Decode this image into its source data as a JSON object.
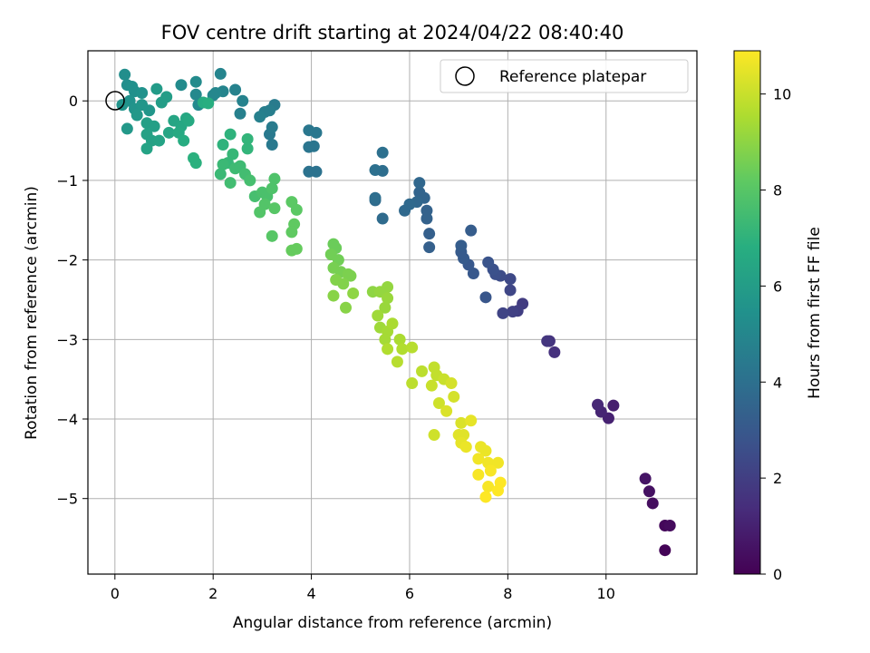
{
  "chart_data": {
    "type": "scatter",
    "title": "FOV centre drift starting at 2024/04/22 08:40:40",
    "xlabel": "Angular distance from reference (arcmin)",
    "ylabel": "Rotation from reference (arcmin)",
    "xlim": [
      -0.55,
      11.85
    ],
    "ylim": [
      -5.95,
      0.63
    ],
    "xticks": [
      "0",
      "2",
      "4",
      "6",
      "8",
      "10"
    ],
    "yticks": [
      "0",
      "−1",
      "−2",
      "−3",
      "−4",
      "−5"
    ],
    "grid": true,
    "legend_position": "top-right",
    "colorbar": {
      "label": "Hours from first FF file",
      "range": [
        0,
        10.9
      ],
      "ticks": [
        "0",
        "2",
        "4",
        "6",
        "8",
        "10"
      ],
      "colormap": "viridis"
    },
    "reference": {
      "name": "Reference platepar",
      "x": 0,
      "y": 0
    },
    "points": [
      [
        11.2,
        -5.65,
        0.1
      ],
      [
        11.2,
        -5.34,
        0.2
      ],
      [
        11.3,
        -5.34,
        0.3
      ],
      [
        10.95,
        -5.06,
        0.4
      ],
      [
        10.88,
        -4.91,
        0.5
      ],
      [
        10.8,
        -4.75,
        0.6
      ],
      [
        10.15,
        -3.83,
        0.9
      ],
      [
        10.05,
        -3.99,
        1.0
      ],
      [
        9.9,
        -3.91,
        1.1
      ],
      [
        9.83,
        -3.82,
        1.2
      ],
      [
        8.95,
        -3.16,
        1.5
      ],
      [
        8.85,
        -3.02,
        1.6
      ],
      [
        8.8,
        -3.02,
        1.7
      ],
      [
        8.3,
        -2.55,
        1.9
      ],
      [
        8.2,
        -2.64,
        2.0
      ],
      [
        8.1,
        -2.65,
        2.1
      ],
      [
        7.9,
        -2.67,
        2.2
      ],
      [
        8.05,
        -2.38,
        2.3
      ],
      [
        8.05,
        -2.24,
        2.4
      ],
      [
        7.85,
        -2.2,
        2.5
      ],
      [
        7.75,
        -2.18,
        2.6
      ],
      [
        7.7,
        -2.12,
        2.7
      ],
      [
        7.6,
        -2.03,
        2.8
      ],
      [
        7.55,
        -2.47,
        2.9
      ],
      [
        7.3,
        -2.17,
        3.0
      ],
      [
        7.2,
        -2.06,
        3.0
      ],
      [
        7.1,
        -1.98,
        3.1
      ],
      [
        7.05,
        -1.9,
        3.1
      ],
      [
        7.05,
        -1.82,
        3.2
      ],
      [
        7.25,
        -1.63,
        3.2
      ],
      [
        6.4,
        -1.84,
        3.3
      ],
      [
        6.4,
        -1.67,
        3.3
      ],
      [
        6.35,
        -1.48,
        3.4
      ],
      [
        6.35,
        -1.38,
        3.4
      ],
      [
        6.3,
        -1.22,
        3.5
      ],
      [
        6.2,
        -1.15,
        3.5
      ],
      [
        6.2,
        -1.03,
        3.6
      ],
      [
        6.15,
        -1.27,
        3.6
      ],
      [
        6.0,
        -1.3,
        3.7
      ],
      [
        5.9,
        -1.38,
        3.7
      ],
      [
        5.45,
        -1.48,
        3.8
      ],
      [
        5.3,
        -1.25,
        3.8
      ],
      [
        5.3,
        -1.22,
        3.9
      ],
      [
        5.45,
        -0.88,
        3.9
      ],
      [
        5.3,
        -0.87,
        4.0
      ],
      [
        5.45,
        -0.65,
        4.0
      ],
      [
        4.1,
        -0.89,
        4.1
      ],
      [
        3.95,
        -0.89,
        4.1
      ],
      [
        4.05,
        -0.57,
        4.2
      ],
      [
        3.95,
        -0.58,
        4.2
      ],
      [
        4.1,
        -0.4,
        4.3
      ],
      [
        3.95,
        -0.37,
        4.3
      ],
      [
        3.2,
        -0.55,
        4.4
      ],
      [
        3.15,
        -0.42,
        4.4
      ],
      [
        3.2,
        -0.33,
        4.5
      ],
      [
        3.25,
        -0.05,
        4.5
      ],
      [
        3.15,
        -0.12,
        4.6
      ],
      [
        3.05,
        -0.14,
        4.6
      ],
      [
        2.95,
        -0.2,
        4.7
      ],
      [
        2.55,
        -0.16,
        4.7
      ],
      [
        2.6,
        0.0,
        4.8
      ],
      [
        2.45,
        0.14,
        4.8
      ],
      [
        2.2,
        0.12,
        4.9
      ],
      [
        2.15,
        0.34,
        4.9
      ],
      [
        2.05,
        0.1,
        5.0
      ],
      [
        2.0,
        0.07,
        5.0
      ],
      [
        1.7,
        -0.05,
        5.1
      ],
      [
        1.65,
        0.08,
        5.1
      ],
      [
        1.65,
        0.24,
        5.2
      ],
      [
        1.35,
        0.2,
        5.2
      ],
      [
        0.2,
        0.33,
        5.3
      ],
      [
        0.25,
        0.2,
        5.3
      ],
      [
        0.35,
        0.18,
        5.4
      ],
      [
        0.4,
        0.12,
        5.4
      ],
      [
        0.55,
        0.1,
        5.5
      ],
      [
        0.3,
        0.0,
        5.5
      ],
      [
        0.15,
        -0.05,
        5.6
      ],
      [
        0.4,
        -0.1,
        5.6
      ],
      [
        0.55,
        -0.05,
        5.7
      ],
      [
        0.7,
        -0.12,
        5.7
      ],
      [
        0.45,
        -0.18,
        5.8
      ],
      [
        0.25,
        -0.35,
        5.8
      ],
      [
        0.85,
        0.15,
        5.9
      ],
      [
        1.05,
        0.05,
        6.0
      ],
      [
        0.95,
        -0.02,
        6.0
      ],
      [
        0.65,
        -0.28,
        6.1
      ],
      [
        0.8,
        -0.32,
        6.1
      ],
      [
        0.65,
        -0.42,
        6.2
      ],
      [
        0.75,
        -0.5,
        6.2
      ],
      [
        0.65,
        -0.6,
        6.3
      ],
      [
        0.9,
        -0.5,
        6.3
      ],
      [
        1.1,
        -0.4,
        6.4
      ],
      [
        1.2,
        -0.25,
        6.4
      ],
      [
        1.35,
        -0.32,
        6.5
      ],
      [
        1.45,
        -0.22,
        6.5
      ],
      [
        1.5,
        -0.25,
        6.6
      ],
      [
        1.3,
        -0.4,
        6.6
      ],
      [
        1.4,
        -0.5,
        6.7
      ],
      [
        1.8,
        -0.02,
        6.7
      ],
      [
        1.9,
        -0.03,
        6.8
      ],
      [
        1.6,
        -0.72,
        6.9
      ],
      [
        1.65,
        -0.78,
        6.9
      ],
      [
        2.2,
        -0.55,
        7.0
      ],
      [
        2.35,
        -0.42,
        7.0
      ],
      [
        2.7,
        -0.48,
        7.1
      ],
      [
        2.7,
        -0.6,
        7.1
      ],
      [
        2.4,
        -0.67,
        7.2
      ],
      [
        2.3,
        -0.78,
        7.2
      ],
      [
        2.2,
        -0.8,
        7.3
      ],
      [
        2.15,
        -0.92,
        7.3
      ],
      [
        2.45,
        -0.85,
        7.4
      ],
      [
        2.55,
        -0.82,
        7.4
      ],
      [
        2.35,
        -1.03,
        7.5
      ],
      [
        2.65,
        -0.92,
        7.5
      ],
      [
        2.75,
        -1.0,
        7.6
      ],
      [
        2.85,
        -1.2,
        7.6
      ],
      [
        3.0,
        -1.15,
        7.7
      ],
      [
        3.1,
        -1.2,
        7.7
      ],
      [
        3.25,
        -0.98,
        7.8
      ],
      [
        3.2,
        -1.1,
        7.8
      ],
      [
        3.05,
        -1.3,
        7.9
      ],
      [
        2.95,
        -1.4,
        7.9
      ],
      [
        3.25,
        -1.35,
        8.0
      ],
      [
        3.2,
        -1.7,
        8.0
      ],
      [
        3.6,
        -1.27,
        8.1
      ],
      [
        3.7,
        -1.37,
        8.1
      ],
      [
        3.65,
        -1.55,
        8.2
      ],
      [
        3.6,
        -1.65,
        8.2
      ],
      [
        3.6,
        -1.88,
        8.3
      ],
      [
        3.7,
        -1.86,
        8.3
      ],
      [
        4.45,
        -1.8,
        8.4
      ],
      [
        4.5,
        -1.85,
        8.4
      ],
      [
        4.4,
        -1.93,
        8.5
      ],
      [
        4.55,
        -2.0,
        8.5
      ],
      [
        4.45,
        -2.1,
        8.6
      ],
      [
        4.6,
        -2.15,
        8.6
      ],
      [
        4.75,
        -2.18,
        8.7
      ],
      [
        4.8,
        -2.2,
        8.7
      ],
      [
        4.5,
        -2.25,
        8.8
      ],
      [
        4.65,
        -2.3,
        8.8
      ],
      [
        4.45,
        -2.45,
        8.9
      ],
      [
        4.7,
        -2.6,
        8.9
      ],
      [
        4.85,
        -2.42,
        9.0
      ],
      [
        5.25,
        -2.4,
        9.0
      ],
      [
        5.4,
        -2.4,
        9.1
      ],
      [
        5.55,
        -2.34,
        9.1
      ],
      [
        5.55,
        -2.48,
        9.2
      ],
      [
        5.5,
        -2.6,
        9.2
      ],
      [
        5.35,
        -2.7,
        9.3
      ],
      [
        5.4,
        -2.85,
        9.3
      ],
      [
        5.55,
        -2.9,
        9.4
      ],
      [
        5.5,
        -3.0,
        9.4
      ],
      [
        5.65,
        -2.8,
        9.5
      ],
      [
        5.8,
        -3.0,
        9.5
      ],
      [
        5.55,
        -3.12,
        9.6
      ],
      [
        5.85,
        -3.12,
        9.6
      ],
      [
        6.05,
        -3.1,
        9.7
      ],
      [
        5.75,
        -3.28,
        9.7
      ],
      [
        6.05,
        -3.55,
        9.8
      ],
      [
        6.25,
        -3.4,
        9.8
      ],
      [
        6.5,
        -3.35,
        9.9
      ],
      [
        6.55,
        -3.45,
        9.9
      ],
      [
        6.45,
        -3.58,
        10.0
      ],
      [
        6.7,
        -3.5,
        10.0
      ],
      [
        6.6,
        -3.8,
        10.1
      ],
      [
        6.5,
        -4.2,
        10.1
      ],
      [
        6.85,
        -3.55,
        10.2
      ],
      [
        6.9,
        -3.72,
        10.2
      ],
      [
        6.75,
        -3.9,
        10.3
      ],
      [
        7.05,
        -4.05,
        10.3
      ],
      [
        7.0,
        -4.2,
        10.4
      ],
      [
        7.1,
        -4.2,
        10.4
      ],
      [
        7.25,
        -4.02,
        10.5
      ],
      [
        7.05,
        -4.3,
        10.5
      ],
      [
        7.15,
        -4.35,
        10.6
      ],
      [
        7.45,
        -4.35,
        10.6
      ],
      [
        7.55,
        -4.4,
        10.6
      ],
      [
        7.4,
        -4.5,
        10.7
      ],
      [
        7.6,
        -4.55,
        10.7
      ],
      [
        7.8,
        -4.55,
        10.7
      ],
      [
        7.4,
        -4.7,
        10.8
      ],
      [
        7.65,
        -4.65,
        10.8
      ],
      [
        7.6,
        -4.85,
        10.8
      ],
      [
        7.85,
        -4.8,
        10.9
      ],
      [
        7.8,
        -4.9,
        10.9
      ],
      [
        7.55,
        -4.98,
        10.9
      ]
    ]
  }
}
